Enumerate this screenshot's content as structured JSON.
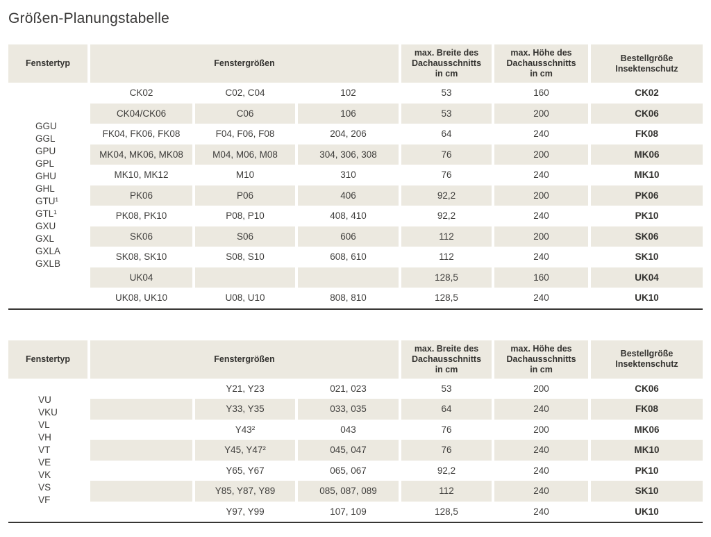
{
  "page": {
    "title": "Größen-Planungstabelle"
  },
  "colors": {
    "row_beige": "#ece9e0",
    "text": "#3e3d3b",
    "rule": "#363533",
    "background": "#ffffff"
  },
  "tables": [
    {
      "headers": {
        "fenstertyp": "Fenstertyp",
        "fenstergroessen": "Fenstergrößen",
        "max_breite": "max. Breite des\nDachausschnitts\nin cm",
        "max_hoehe": "max. Höhe des\nDachausschnitts\nin cm",
        "bestellgroesse": "Bestellgröße\nInsektenschutz"
      },
      "fenstertyp_lines": [
        "GGU",
        "GGL",
        "GPU",
        "GPL",
        "GHU",
        "GHL",
        "GTU¹",
        "GTL¹",
        "GXU",
        "GXL",
        "GXLA",
        "GXLB"
      ],
      "rows": [
        {
          "c1": "CK02",
          "c2": "C02, C04",
          "c3": "102",
          "breite": "53",
          "hoehe": "160",
          "bestell": "CK02"
        },
        {
          "c1": "CK04/CK06",
          "c2": "C06",
          "c3": "106",
          "breite": "53",
          "hoehe": "200",
          "bestell": "CK06"
        },
        {
          "c1": "FK04, FK06, FK08",
          "c2": "F04, F06, F08",
          "c3": "204, 206",
          "breite": "64",
          "hoehe": "240",
          "bestell": "FK08"
        },
        {
          "c1": "MK04, MK06, MK08",
          "c2": "M04, M06, M08",
          "c3": "304, 306, 308",
          "breite": "76",
          "hoehe": "200",
          "bestell": "MK06"
        },
        {
          "c1": "MK10, MK12",
          "c2": "M10",
          "c3": "310",
          "breite": "76",
          "hoehe": "240",
          "bestell": "MK10"
        },
        {
          "c1": "PK06",
          "c2": "P06",
          "c3": "406",
          "breite": "92,2",
          "hoehe": "200",
          "bestell": "PK06"
        },
        {
          "c1": "PK08, PK10",
          "c2": "P08, P10",
          "c3": "408, 410",
          "breite": "92,2",
          "hoehe": "240",
          "bestell": "PK10"
        },
        {
          "c1": "SK06",
          "c2": "S06",
          "c3": "606",
          "breite": "112",
          "hoehe": "200",
          "bestell": "SK06"
        },
        {
          "c1": "SK08, SK10",
          "c2": "S08, S10",
          "c3": "608, 610",
          "breite": "112",
          "hoehe": "240",
          "bestell": "SK10"
        },
        {
          "c1": "UK04",
          "c2": "",
          "c3": "",
          "breite": "128,5",
          "hoehe": "160",
          "bestell": "UK04"
        },
        {
          "c1": "UK08, UK10",
          "c2": "U08, U10",
          "c3": "808, 810",
          "breite": "128,5",
          "hoehe": "240",
          "bestell": "UK10"
        }
      ]
    },
    {
      "headers": {
        "fenstertyp": "Fenstertyp",
        "fenstergroessen": "Fenstergrößen",
        "max_breite": "max. Breite des\nDachausschnitts\nin cm",
        "max_hoehe": "max. Höhe des\nDachausschnitts\nin cm",
        "bestellgroesse": "Bestellgröße\nInsektenschutz"
      },
      "fenstertyp_lines": [
        "VU",
        "VKU",
        "VL",
        "VH",
        "VT",
        "VE",
        "VK",
        "VS",
        "VF"
      ],
      "rows": [
        {
          "c1": "",
          "c2": "Y21, Y23",
          "c3": "021, 023",
          "breite": "53",
          "hoehe": "200",
          "bestell": "CK06"
        },
        {
          "c1": "",
          "c2": "Y33, Y35",
          "c3": "033, 035",
          "breite": "64",
          "hoehe": "240",
          "bestell": "FK08"
        },
        {
          "c1": "",
          "c2": "Y43²",
          "c3": "043",
          "breite": "76",
          "hoehe": "200",
          "bestell": "MK06"
        },
        {
          "c1": "",
          "c2": "Y45, Y47²",
          "c3": "045, 047",
          "breite": "76",
          "hoehe": "240",
          "bestell": "MK10"
        },
        {
          "c1": "",
          "c2": "Y65, Y67",
          "c3": "065, 067",
          "breite": "92,2",
          "hoehe": "240",
          "bestell": "PK10"
        },
        {
          "c1": "",
          "c2": "Y85, Y87, Y89",
          "c3": "085, 087, 089",
          "breite": "112",
          "hoehe": "240",
          "bestell": "SK10"
        },
        {
          "c1": "",
          "c2": "Y97, Y99",
          "c3": "107, 109",
          "breite": "128,5",
          "hoehe": "240",
          "bestell": "UK10"
        }
      ]
    }
  ]
}
